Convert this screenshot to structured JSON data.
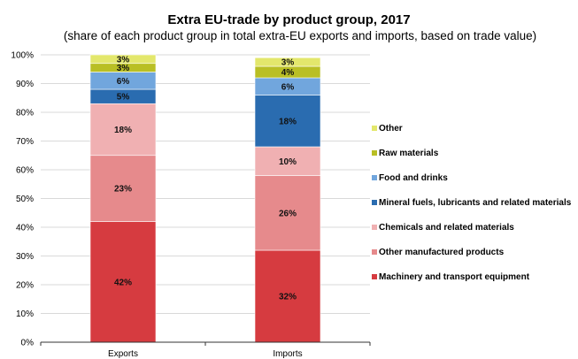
{
  "chart_data": {
    "type": "bar",
    "stacked": true,
    "title": "Extra EU-trade by product group, 2017",
    "subtitle": "(share of each product group in total extra-EU exports and imports, based on trade value)",
    "xlabel": "",
    "ylabel": "",
    "ylim": [
      0,
      100
    ],
    "yticks": [
      "0%",
      "10%",
      "20%",
      "30%",
      "40%",
      "50%",
      "60%",
      "70%",
      "80%",
      "90%",
      "100%"
    ],
    "grid": true,
    "legend_position": "right",
    "categories": [
      "Exports",
      "Imports"
    ],
    "series": [
      {
        "name": "Machinery and transport equipment",
        "color": "#d63b40",
        "values": [
          42,
          32
        ]
      },
      {
        "name": "Other manufactured products",
        "color": "#e68a8c",
        "values": [
          23,
          26
        ]
      },
      {
        "name": "Chemicals and related materials",
        "color": "#f0b0b2",
        "values": [
          18,
          10
        ]
      },
      {
        "name": "Mineral fuels, lubricants and related materials",
        "color": "#2a6cb0",
        "values": [
          5,
          18
        ]
      },
      {
        "name": "Food and drinks",
        "color": "#71a6dd",
        "values": [
          6,
          6
        ]
      },
      {
        "name": "Raw materials",
        "color": "#b9bf24",
        "values": [
          3,
          4
        ]
      },
      {
        "name": "Other",
        "color": "#e3e76c",
        "values": [
          3,
          3
        ]
      }
    ]
  }
}
